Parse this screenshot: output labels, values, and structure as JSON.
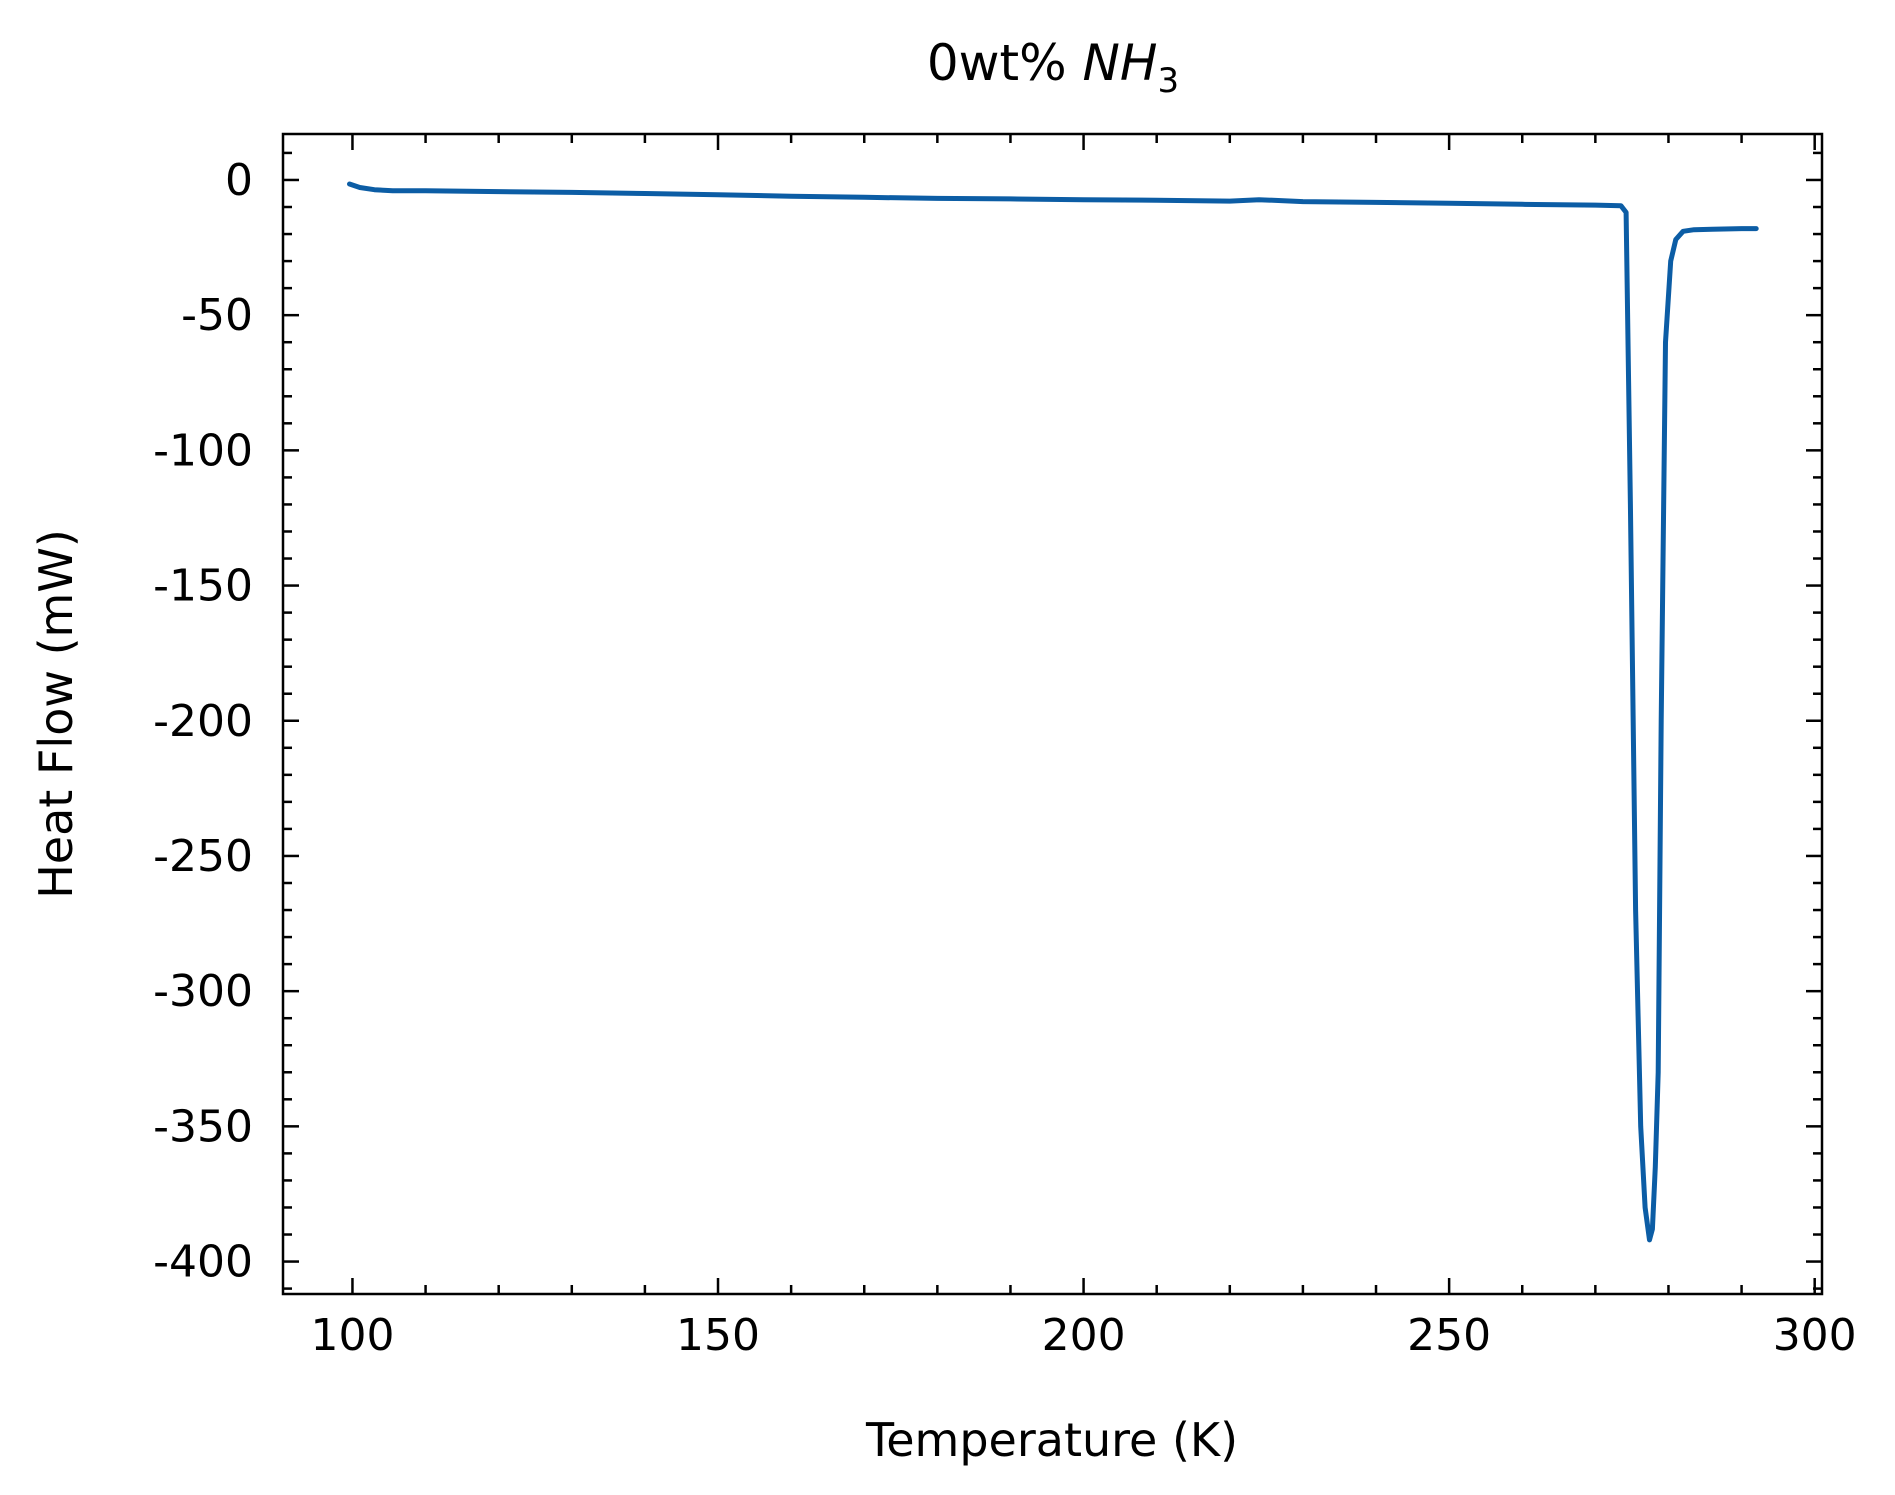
{
  "chart_data": {
    "type": "line",
    "title": {
      "prefix": "0wt% ",
      "formula_main": "NH",
      "formula_sub": "3"
    },
    "xlabel": "Temperature (K)",
    "ylabel": "Heat Flow (mW)",
    "xlim": [
      90.5,
      301
    ],
    "ylim": [
      -412,
      17
    ],
    "x_ticks": [
      100,
      150,
      200,
      250,
      300
    ],
    "x_tick_labels": [
      "100",
      "150",
      "200",
      "250",
      "300"
    ],
    "x_minor_step": 10,
    "y_ticks": [
      0,
      -50,
      -100,
      -150,
      -200,
      -250,
      -300,
      -350,
      -400
    ],
    "y_tick_labels": [
      "0",
      "-50",
      "-100",
      "-150",
      "-200",
      "-250",
      "-300",
      "-350",
      "-400"
    ],
    "y_minor_step": 10,
    "grid": false,
    "ticks_direction": "in",
    "series": [
      {
        "color": "#0c5da5",
        "x": [
          99.6,
          101,
          103,
          105.5,
          110,
          120,
          130,
          140,
          150,
          160,
          170,
          180,
          190,
          200,
          210,
          220,
          224,
          230,
          240,
          250,
          260,
          270,
          273.5,
          274.2,
          274.8,
          275.5,
          276.2,
          276.8,
          277.4,
          277.8,
          278.2,
          278.6,
          279.0,
          279.6,
          280.3,
          281.0,
          282.0,
          283.5,
          286,
          290,
          292
        ],
        "y": [
          -1.5,
          -2.8,
          -3.6,
          -4,
          -4,
          -4.3,
          -4.6,
          -5,
          -5.5,
          -6,
          -6.4,
          -6.8,
          -7,
          -7.3,
          -7.5,
          -7.8,
          -7.3,
          -8,
          -8.3,
          -8.6,
          -9,
          -9.3,
          -9.5,
          -12,
          -120,
          -270,
          -350,
          -380,
          -392,
          -388,
          -365,
          -330,
          -200,
          -60,
          -30,
          -22,
          -19,
          -18.4,
          -18.2,
          -18,
          -18
        ]
      }
    ]
  }
}
